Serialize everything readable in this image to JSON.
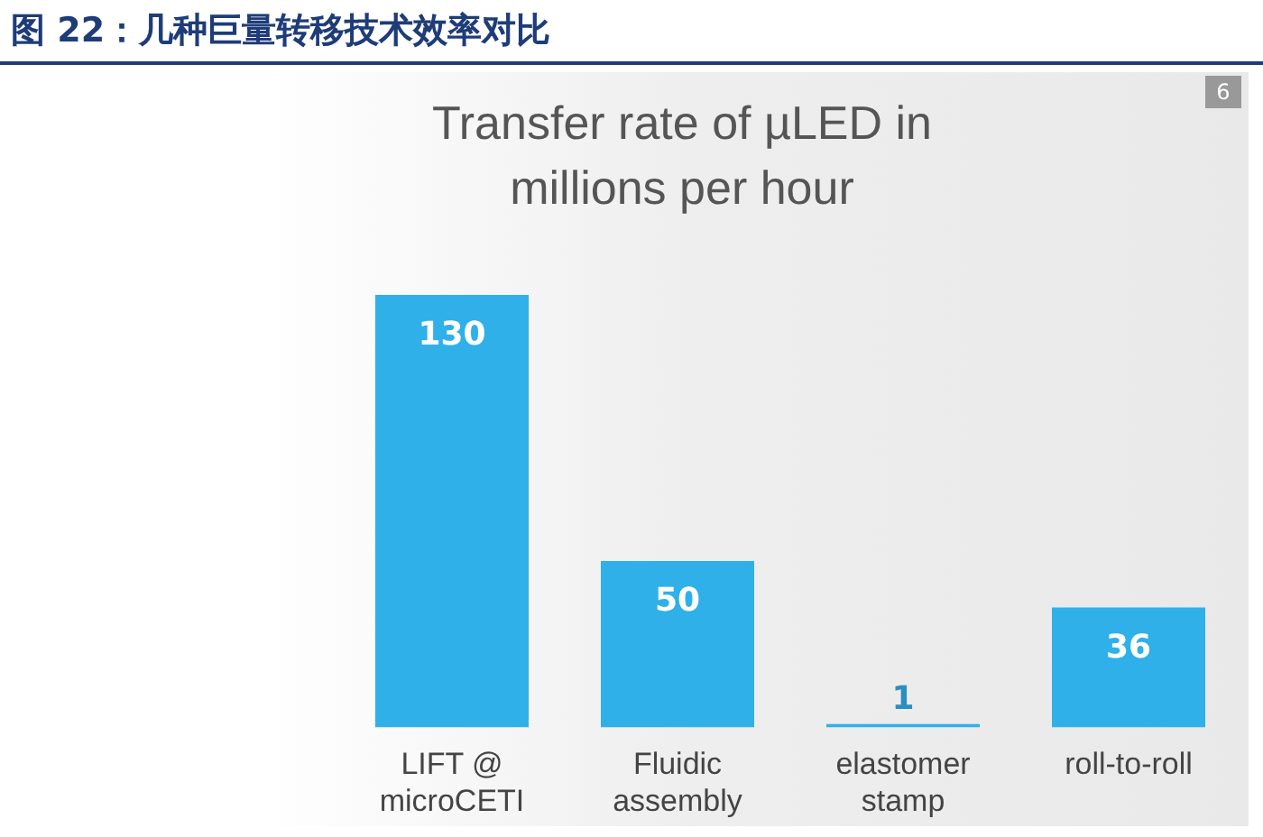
{
  "chart_data": {
    "type": "bar",
    "title": "图 22：几种巨量转移技术效率对比",
    "subtitle": "Transfer rate of µLED in millions per hour",
    "categories": [
      "LIFT @ microCETI",
      "Fluidic assembly",
      "elastomer stamp",
      "roll-to-roll"
    ],
    "values": [
      130,
      50,
      1,
      36
    ],
    "color": "#2fb0e8",
    "data_labels": true,
    "grid": false,
    "legend": false,
    "annotations": [
      "6"
    ]
  }
}
